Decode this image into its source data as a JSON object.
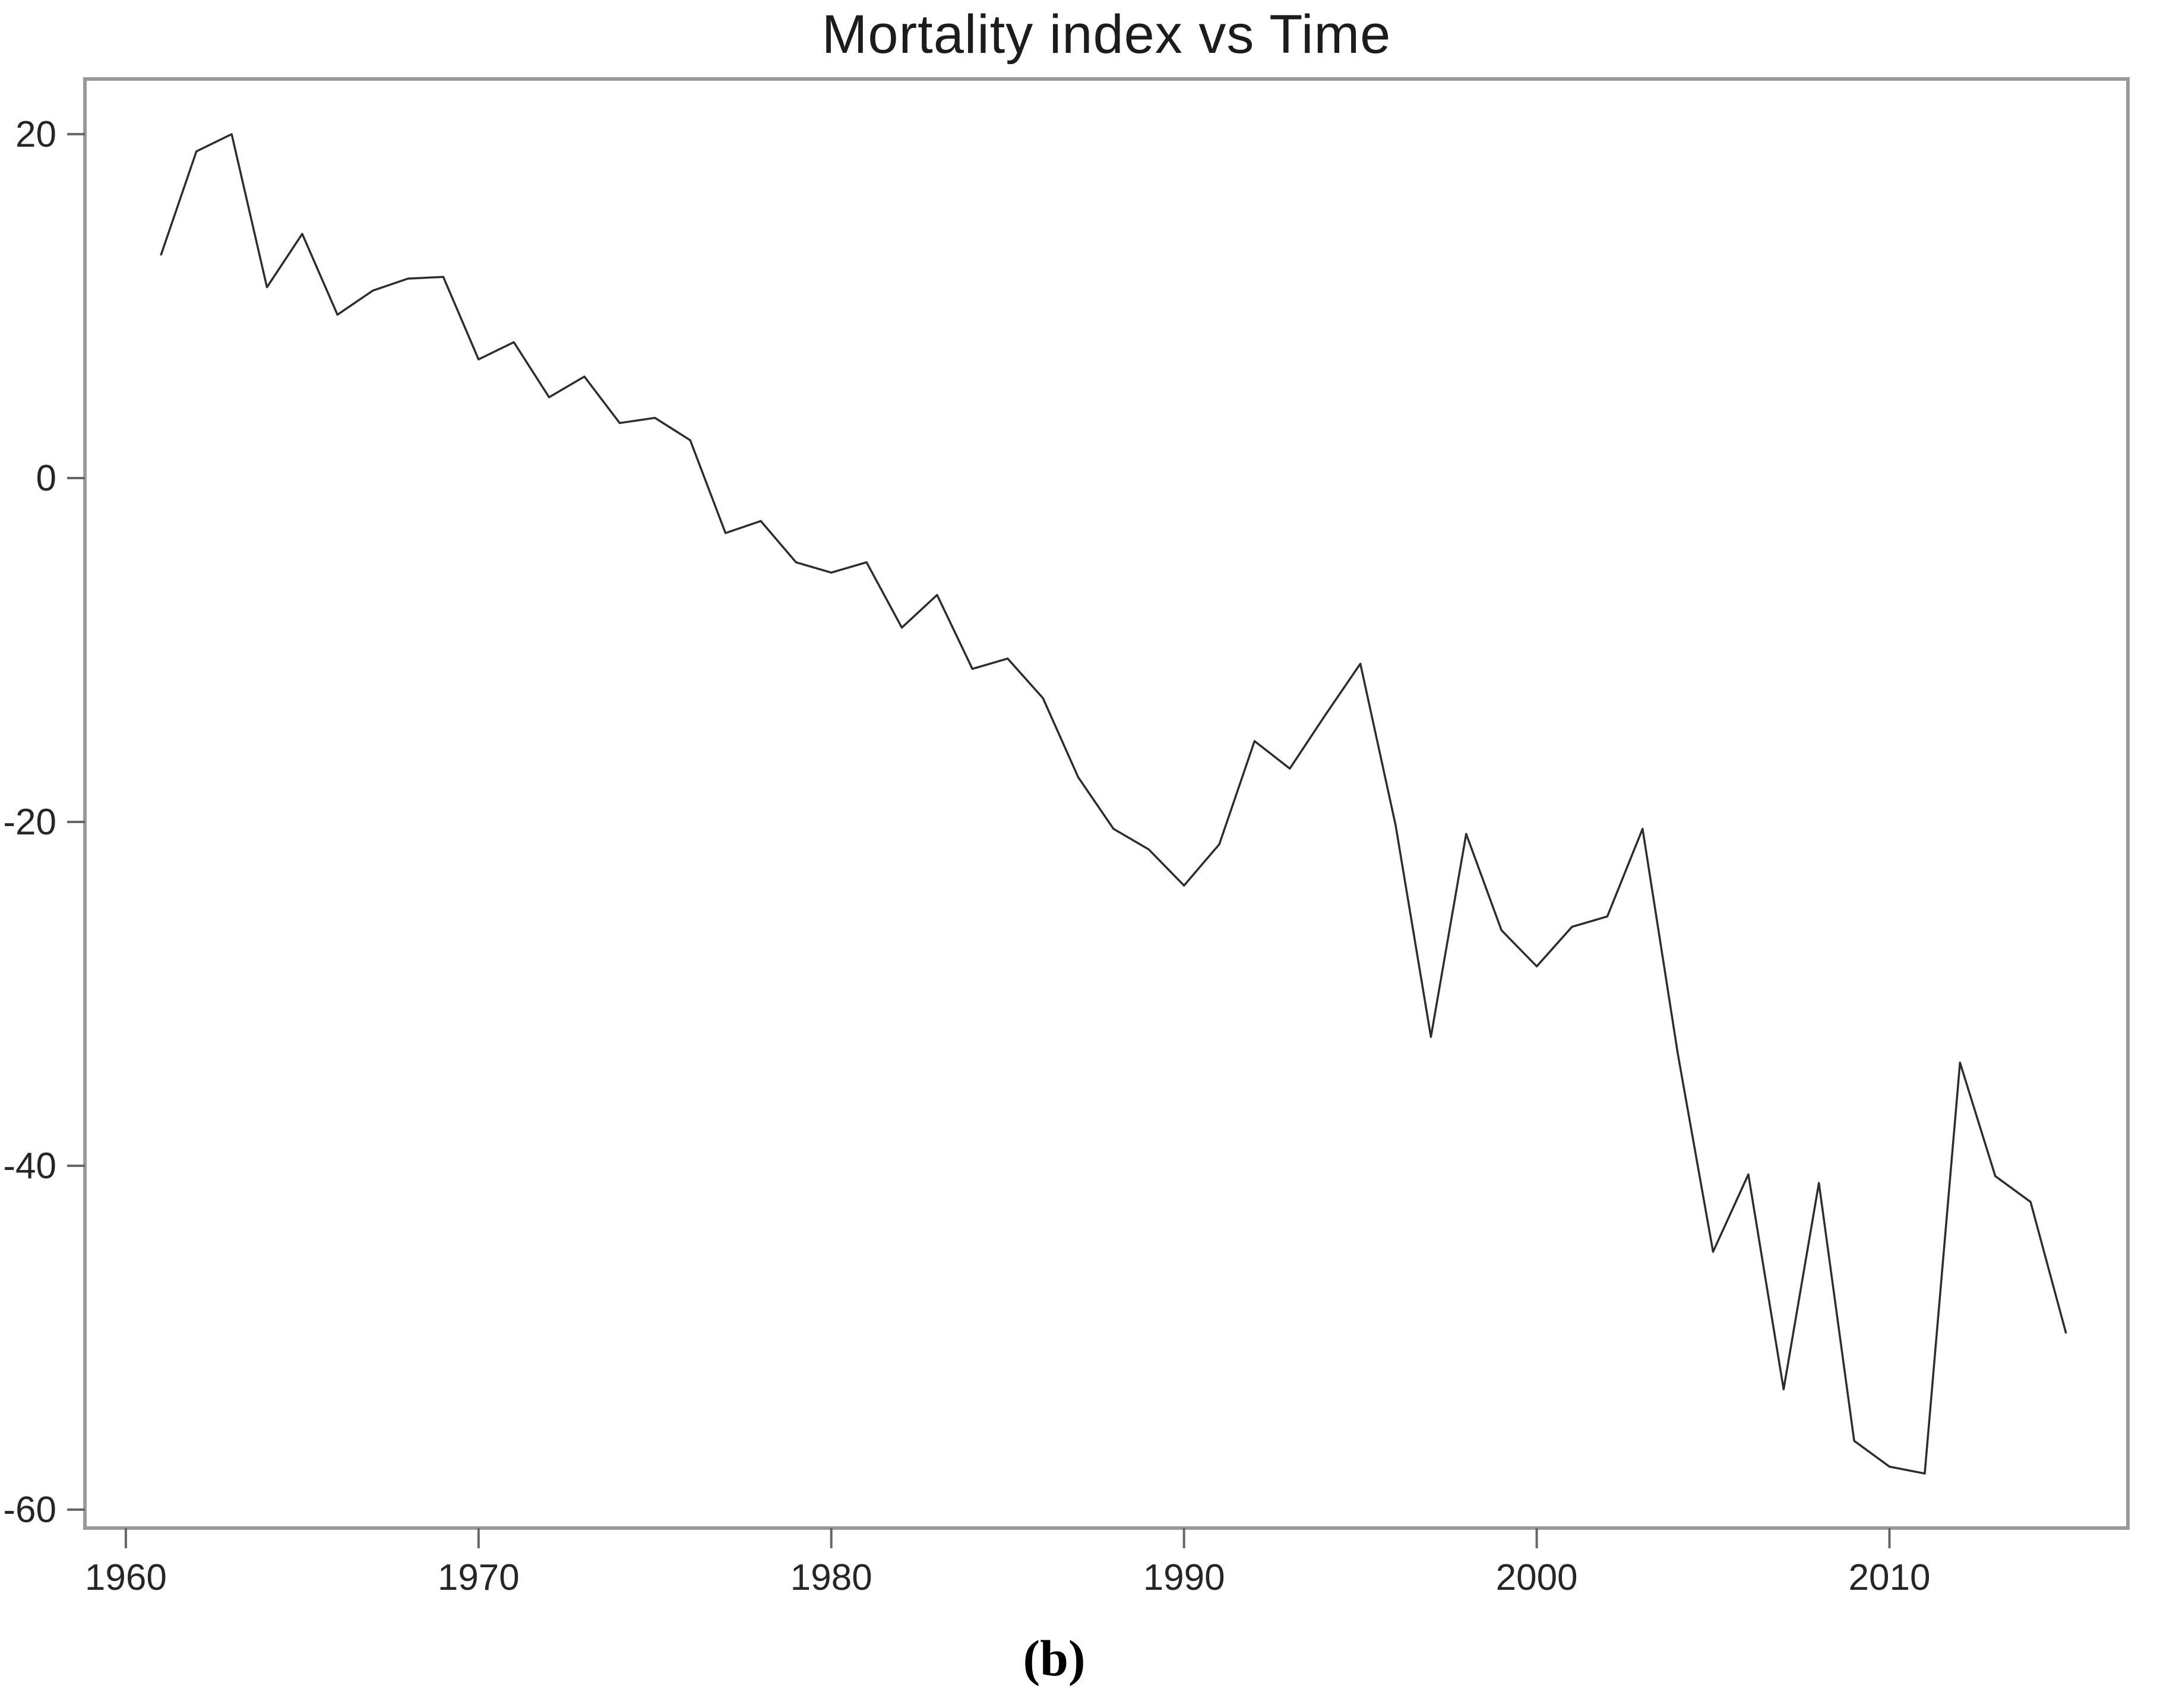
{
  "title": "Mortality index vs Time",
  "caption": "(b)",
  "chart_data": {
    "type": "line",
    "title": "Mortality index vs Time",
    "xlabel": "",
    "ylabel": "",
    "legend": "none",
    "grid": false,
    "xlim": [
      1958.84,
      2016.76
    ],
    "ylim": [
      -61.07,
      23.21
    ],
    "x_ticks": [
      1960,
      1970,
      1980,
      1990,
      2000,
      2010
    ],
    "y_ticks": [
      20,
      0,
      -20,
      -40,
      -60
    ],
    "x": [
      1961,
      1962,
      1963,
      1964,
      1965,
      1966,
      1967,
      1968,
      1969,
      1970,
      1971,
      1972,
      1973,
      1974,
      1975,
      1976,
      1977,
      1978,
      1979,
      1980,
      1981,
      1982,
      1983,
      1984,
      1985,
      1986,
      1987,
      1988,
      1989,
      1990,
      1991,
      1992,
      1993,
      1994,
      1995,
      1996,
      1997,
      1998,
      1999,
      2000,
      2001,
      2002,
      2003,
      2004,
      2005,
      2006,
      2007,
      2008,
      2009,
      2010,
      2011,
      2012,
      2013,
      2014,
      2015
    ],
    "values": [
      13.0,
      19.0,
      20.0,
      11.1,
      14.2,
      9.5,
      10.9,
      11.6,
      11.7,
      6.9,
      7.9,
      4.7,
      5.9,
      3.2,
      3.5,
      2.2,
      -3.2,
      -2.5,
      -4.9,
      -5.5,
      -4.9,
      -8.7,
      -6.8,
      -11.1,
      -10.5,
      -12.8,
      -17.4,
      -20.4,
      -21.6,
      -23.7,
      -21.3,
      -15.3,
      -16.9,
      -13.8,
      -10.8,
      -20.2,
      -32.5,
      -20.7,
      -26.3,
      -28.4,
      -26.1,
      -25.5,
      -20.4,
      -33.5,
      -45.0,
      -40.5,
      -53.0,
      -41.0,
      -56.0,
      -57.5,
      -57.9,
      -34.0,
      -40.6,
      -42.1,
      -49.7
    ],
    "colors": {
      "line": "#2d2d2d",
      "axis": "#999999",
      "tick": "#666666",
      "label": "#262626",
      "background": "#ffffff"
    }
  }
}
